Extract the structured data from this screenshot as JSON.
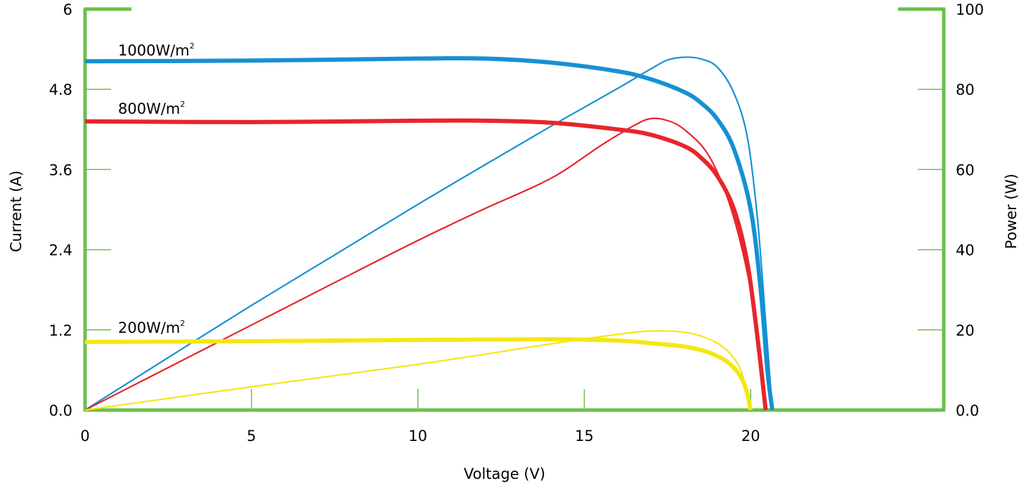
{
  "chart_data": {
    "type": "line",
    "xlabel": "Voltage (V)",
    "ylabel_left": "Current (A)",
    "ylabel_right": "Power (W)",
    "x_ticks": [
      "0",
      "5",
      "10",
      "15",
      "20"
    ],
    "x_tick_values": [
      0,
      5,
      10,
      15,
      20
    ],
    "xlim": [
      0,
      25.8
    ],
    "y_left_ticks": [
      "0.0",
      "1.2",
      "2.4",
      "3.6",
      "4.8",
      "6"
    ],
    "y_left_tick_values": [
      0,
      1.2,
      2.4,
      3.6,
      4.8,
      6
    ],
    "ylim_left": [
      0,
      6
    ],
    "y_right_ticks": [
      "0.0",
      "20",
      "40",
      "60",
      "80",
      "100"
    ],
    "y_right_tick_values": [
      0,
      20,
      40,
      60,
      80,
      100
    ],
    "ylim_right": [
      0,
      100
    ],
    "axis_color": "#6cbf4b",
    "series": [
      {
        "name": "1000W/m²",
        "label_main": "1000W/m",
        "label_sup": "2",
        "color": "#1591d3",
        "iv_points": [
          [
            0,
            5.22
          ],
          [
            5,
            5.23
          ],
          [
            10,
            5.26
          ],
          [
            12,
            5.26
          ],
          [
            14,
            5.2
          ],
          [
            16,
            5.07
          ],
          [
            17,
            4.95
          ],
          [
            18,
            4.76
          ],
          [
            18.5,
            4.6
          ],
          [
            19,
            4.35
          ],
          [
            19.5,
            3.9
          ],
          [
            20,
            3.0
          ],
          [
            20.3,
            1.8
          ],
          [
            20.5,
            0.6
          ],
          [
            20.65,
            0
          ]
        ],
        "power_points": [
          [
            0,
            0
          ],
          [
            2.5,
            13.1
          ],
          [
            5,
            26.1
          ],
          [
            7.5,
            38.7
          ],
          [
            10,
            51.3
          ],
          [
            12,
            61.1
          ],
          [
            14,
            70.8
          ],
          [
            16,
            80.2
          ],
          [
            17,
            85.1
          ],
          [
            17.5,
            87.3
          ],
          [
            18,
            88.0
          ],
          [
            18.5,
            87.6
          ],
          [
            19,
            85.5
          ],
          [
            19.5,
            79.0
          ],
          [
            19.9,
            68.0
          ],
          [
            20.2,
            48.0
          ],
          [
            20.45,
            22.0
          ],
          [
            20.65,
            0
          ]
        ]
      },
      {
        "name": "800W/m²",
        "label_main": "800W/m",
        "label_sup": "2",
        "color": "#e8252a",
        "iv_points": [
          [
            0,
            4.32
          ],
          [
            5,
            4.31
          ],
          [
            10,
            4.33
          ],
          [
            12,
            4.33
          ],
          [
            14,
            4.3
          ],
          [
            16,
            4.2
          ],
          [
            17,
            4.12
          ],
          [
            18,
            3.95
          ],
          [
            18.5,
            3.78
          ],
          [
            19,
            3.5
          ],
          [
            19.5,
            3.0
          ],
          [
            19.9,
            2.2
          ],
          [
            20.2,
            1.1
          ],
          [
            20.45,
            0
          ]
        ],
        "power_points": [
          [
            0,
            0
          ],
          [
            2.5,
            10.6
          ],
          [
            5,
            21.2
          ],
          [
            7.5,
            31.8
          ],
          [
            10,
            42.3
          ],
          [
            12,
            50.2
          ],
          [
            14,
            57.8
          ],
          [
            15.5,
            66.0
          ],
          [
            16.5,
            71.0
          ],
          [
            17,
            72.7
          ],
          [
            17.5,
            72.2
          ],
          [
            18,
            70.0
          ],
          [
            18.7,
            64.0
          ],
          [
            19.3,
            53.0
          ],
          [
            19.8,
            38.0
          ],
          [
            20.2,
            20.0
          ],
          [
            20.45,
            0
          ]
        ]
      },
      {
        "name": "200W/m²",
        "label_main": "200W/m",
        "label_sup": "2",
        "color": "#f5e614",
        "iv_points": [
          [
            0,
            1.02
          ],
          [
            5,
            1.03
          ],
          [
            10,
            1.05
          ],
          [
            14,
            1.06
          ],
          [
            16,
            1.04
          ],
          [
            17,
            1.0
          ],
          [
            18,
            0.95
          ],
          [
            18.8,
            0.85
          ],
          [
            19.4,
            0.68
          ],
          [
            19.8,
            0.4
          ],
          [
            20.0,
            0
          ]
        ],
        "power_points": [
          [
            0,
            0
          ],
          [
            5,
            5.8
          ],
          [
            10,
            11.4
          ],
          [
            14,
            16.5
          ],
          [
            15.5,
            18.3
          ],
          [
            16.5,
            19.4
          ],
          [
            17,
            19.7
          ],
          [
            17.8,
            19.6
          ],
          [
            18.5,
            18.5
          ],
          [
            19.2,
            15.5
          ],
          [
            19.7,
            10.0
          ],
          [
            20.0,
            0
          ]
        ]
      }
    ],
    "grid": false
  }
}
